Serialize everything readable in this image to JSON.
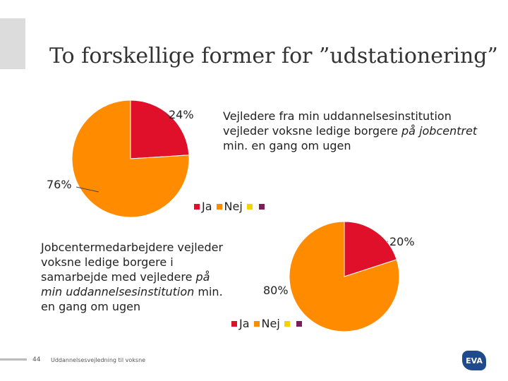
{
  "slide": {
    "title": "To forskellige former for ”udstationering”",
    "footer_page": "44",
    "footer_text": "Uddannelsesvejledning til voksne",
    "logo_text": "EVA"
  },
  "colors": {
    "ja": "#e0102a",
    "nej": "#ff8c00",
    "third": "#f5d300",
    "fourth": "#7a1f5c"
  },
  "chart_data": [
    {
      "type": "pie",
      "caption_parts": [
        {
          "text": "Vejledere fra min uddannelsesinstitution vejleder voksne ledige borgere ",
          "italic": false
        },
        {
          "text": "på jobcentret",
          "italic": true
        },
        {
          "text": " min. en gang om ugen",
          "italic": false
        }
      ],
      "slices": [
        {
          "label": "Ja",
          "value": 24,
          "data_label": "24%",
          "color": "#e0102a"
        },
        {
          "label": "Nej",
          "value": 76,
          "data_label": "76%",
          "color": "#ff8c00"
        }
      ],
      "legend": [
        {
          "label": "Ja",
          "color": "#e0102a"
        },
        {
          "label": "Nej",
          "color": "#ff8c00"
        },
        {
          "label": "",
          "color": "#f5d300"
        },
        {
          "label": "",
          "color": "#7a1f5c"
        }
      ]
    },
    {
      "type": "pie",
      "caption_parts": [
        {
          "text": "Jobcentermedarbejdere vejleder voksne ledige borgere i samarbejde med vejledere ",
          "italic": false
        },
        {
          "text": "på min uddannelsesinstitution",
          "italic": true
        },
        {
          "text": " min. en gang om ugen",
          "italic": false
        }
      ],
      "slices": [
        {
          "label": "Ja",
          "value": 20,
          "data_label": "20%",
          "color": "#e0102a"
        },
        {
          "label": "Nej",
          "value": 80,
          "data_label": "80%",
          "color": "#ff8c00"
        }
      ],
      "legend": [
        {
          "label": "Ja",
          "color": "#e0102a"
        },
        {
          "label": "Nej",
          "color": "#ff8c00"
        },
        {
          "label": "",
          "color": "#f5d300"
        },
        {
          "label": "",
          "color": "#7a1f5c"
        }
      ]
    }
  ]
}
